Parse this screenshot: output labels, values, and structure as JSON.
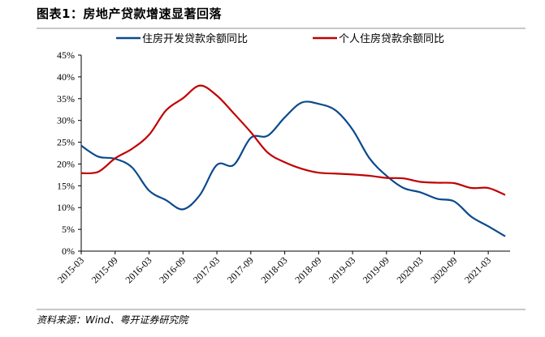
{
  "title": "图表1：房地产贷款增速显著回落",
  "source": "资料来源：Wind、粤开证券研究院",
  "chart_data": {
    "type": "line",
    "title": "图表1：房地产贷款增速显著回落",
    "xlabel": "",
    "ylabel": "",
    "ylim": [
      0,
      45
    ],
    "yticks": [
      "0%",
      "5%",
      "10%",
      "15%",
      "20%",
      "25%",
      "30%",
      "35%",
      "40%",
      "45%"
    ],
    "xticks": [
      "2015-03",
      "2015-09",
      "2016-03",
      "2016-09",
      "2017-03",
      "2017-09",
      "2018-03",
      "2018-09",
      "2019-03",
      "2019-09",
      "2020-03",
      "2020-09",
      "2021-03"
    ],
    "grid": false,
    "legend": "top",
    "x": [
      "2015-03",
      "2015-06",
      "2015-09",
      "2015-12",
      "2016-03",
      "2016-06",
      "2016-09",
      "2016-12",
      "2017-03",
      "2017-06",
      "2017-09",
      "2017-12",
      "2018-03",
      "2018-06",
      "2018-09",
      "2018-12",
      "2019-03",
      "2019-06",
      "2019-09",
      "2019-12",
      "2020-03",
      "2020-06",
      "2020-09",
      "2020-12",
      "2021-03",
      "2021-06"
    ],
    "series": [
      {
        "name": "住房开发贷款余额同比",
        "color": "#0b4a8c",
        "values": [
          24.2,
          21.7,
          21.2,
          19.2,
          13.9,
          11.7,
          9.6,
          12.9,
          19.8,
          19.8,
          26.0,
          26.5,
          30.7,
          34.1,
          33.8,
          32.3,
          27.9,
          21.3,
          17.3,
          14.5,
          13.5,
          12.0,
          11.4,
          7.9,
          5.7,
          3.4
        ]
      },
      {
        "name": "个人住房贷款余额同比",
        "color": "#c00000",
        "values": [
          17.9,
          18.2,
          21.3,
          23.5,
          26.7,
          32.3,
          35.1,
          38.0,
          35.7,
          31.6,
          27.3,
          22.6,
          20.4,
          18.9,
          18.0,
          17.8,
          17.6,
          17.3,
          16.8,
          16.7,
          15.9,
          15.7,
          15.6,
          14.5,
          14.5,
          12.9
        ]
      }
    ]
  }
}
